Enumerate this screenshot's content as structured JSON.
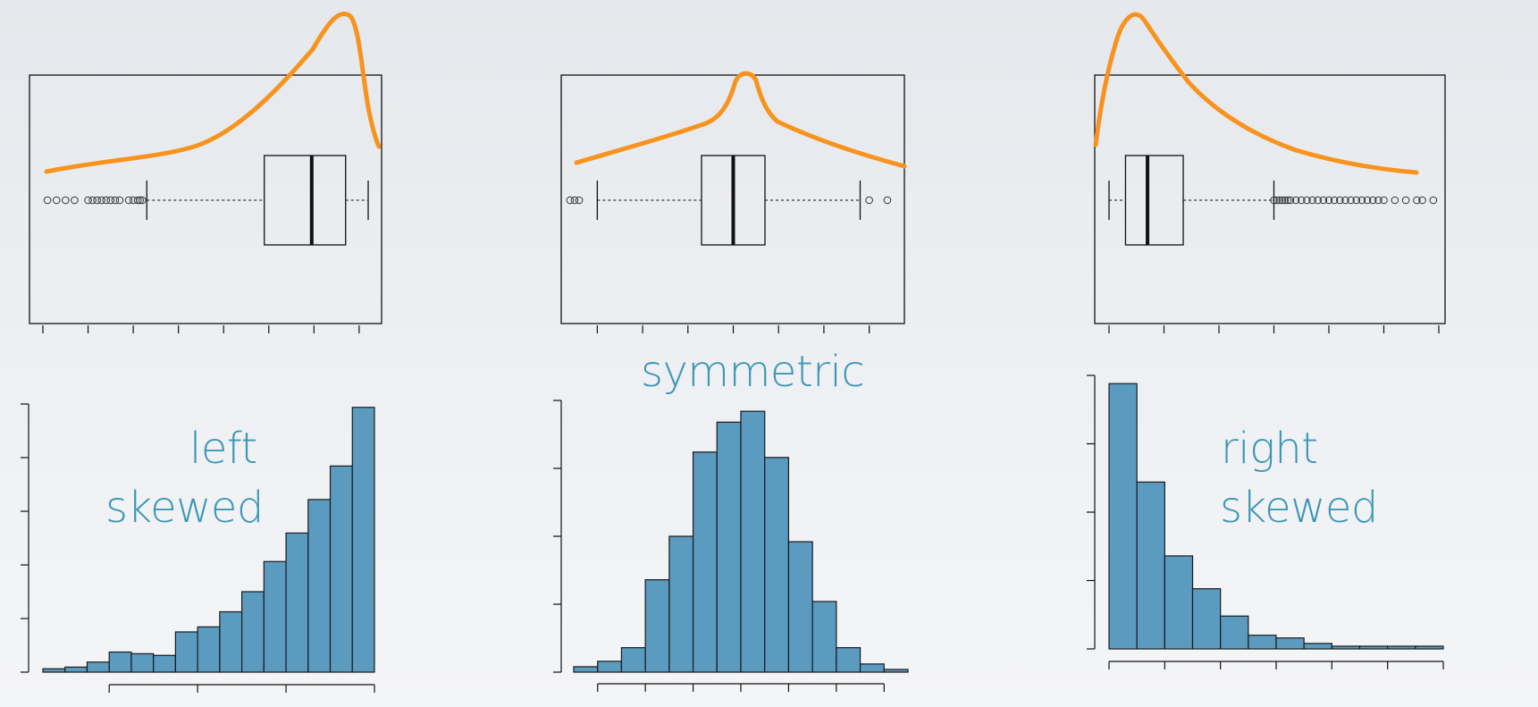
{
  "colors": {
    "bar_fill": "#5a9bbf",
    "bar_stroke": "#1a1a1a",
    "density_curve": "#f7931e",
    "label_text": "#3d97b5",
    "axis": "#111111"
  },
  "chart_data": [
    {
      "type": "boxplot",
      "label": "left skewed",
      "density_curve": "orange, left skewed",
      "box": {
        "whisker_low": 2.3,
        "q1": 4.9,
        "median": 5.95,
        "q3": 6.7,
        "whisker_high": 7.2
      },
      "outliers": [
        0.1,
        0.3,
        0.5,
        0.7,
        1.0,
        1.1,
        1.2,
        1.3,
        1.4,
        1.5,
        1.6,
        1.7,
        1.9,
        2.0,
        2.1,
        2.15,
        2.2
      ],
      "x_ticks": [
        0,
        1,
        2,
        3,
        4,
        5,
        6,
        7
      ]
    },
    {
      "type": "boxplot",
      "label": "symmetric",
      "density_curve": "orange, symmetric",
      "box": {
        "whisker_low": -3.0,
        "q1": -0.7,
        "median": 0.0,
        "q3": 0.7,
        "whisker_high": 2.8
      },
      "outliers": [
        -3.6,
        -3.5,
        -3.4,
        3.0,
        3.4
      ],
      "x_ticks": [
        -3,
        -2,
        -1,
        0,
        1,
        2,
        3
      ]
    },
    {
      "type": "boxplot",
      "label": "right skewed",
      "density_curve": "orange, right skewed",
      "box": {
        "whisker_low": 0.0,
        "q1": 0.3,
        "median": 0.7,
        "q3": 1.35,
        "whisker_high": 3.0
      },
      "outliers": [
        3.0,
        3.05,
        3.1,
        3.15,
        3.2,
        3.25,
        3.3,
        3.4,
        3.5,
        3.6,
        3.7,
        3.8,
        3.9,
        4.0,
        4.1,
        4.2,
        4.3,
        4.4,
        4.5,
        4.6,
        4.7,
        4.8,
        4.9,
        5.0,
        5.2,
        5.4,
        5.6,
        5.7,
        5.9
      ],
      "x_ticks": [
        0,
        1,
        2,
        3,
        4,
        5,
        6
      ]
    },
    {
      "type": "bar",
      "label": "left skewed",
      "bin_edges": [
        -2,
        -1,
        0,
        1,
        2,
        3,
        4,
        5,
        6,
        7,
        8,
        9,
        10,
        11,
        12,
        13
      ],
      "values": [
        2,
        3,
        6,
        12,
        11,
        10,
        24,
        27,
        36,
        48,
        66,
        83,
        103,
        123,
        158
      ],
      "x_ticks": [
        1,
        5,
        9,
        13
      ],
      "ylim": [
        0,
        160
      ],
      "y_ticks": [
        0,
        32,
        64,
        96,
        128,
        160
      ]
    },
    {
      "type": "bar",
      "label": "symmetric",
      "bin_edges": [
        -3.5,
        -3.0,
        -2.5,
        -2.0,
        -1.5,
        -1.0,
        -0.5,
        0.0,
        0.5,
        1.0,
        1.5,
        2.0,
        2.5,
        3.0,
        3.5
      ],
      "values": [
        2,
        4,
        9,
        34,
        50,
        81,
        92,
        96,
        79,
        48,
        26,
        9,
        3,
        1
      ],
      "x_ticks": [
        -3,
        -2,
        -1,
        0,
        1,
        2,
        3
      ],
      "ylim": [
        0,
        100
      ],
      "y_ticks": [
        0,
        25,
        50,
        75,
        100
      ]
    },
    {
      "type": "bar",
      "label": "right skewed",
      "bin_edges": [
        0,
        0.5,
        1,
        1.5,
        2,
        2.5,
        3,
        3.5,
        4,
        4.5,
        5,
        5.5,
        6
      ],
      "values": [
        97,
        61,
        34,
        22,
        12,
        5,
        4,
        2,
        1,
        1,
        1,
        1
      ],
      "x_ticks": [
        0,
        1,
        2,
        3,
        4,
        5,
        6
      ],
      "ylim": [
        0,
        100
      ],
      "y_ticks": [
        0,
        25,
        50,
        75,
        100
      ]
    }
  ],
  "labels": {
    "left_line1": "left",
    "left_line2": "skewed",
    "symmetric": "symmetric",
    "right_line1": "right",
    "right_line2": "skewed"
  }
}
